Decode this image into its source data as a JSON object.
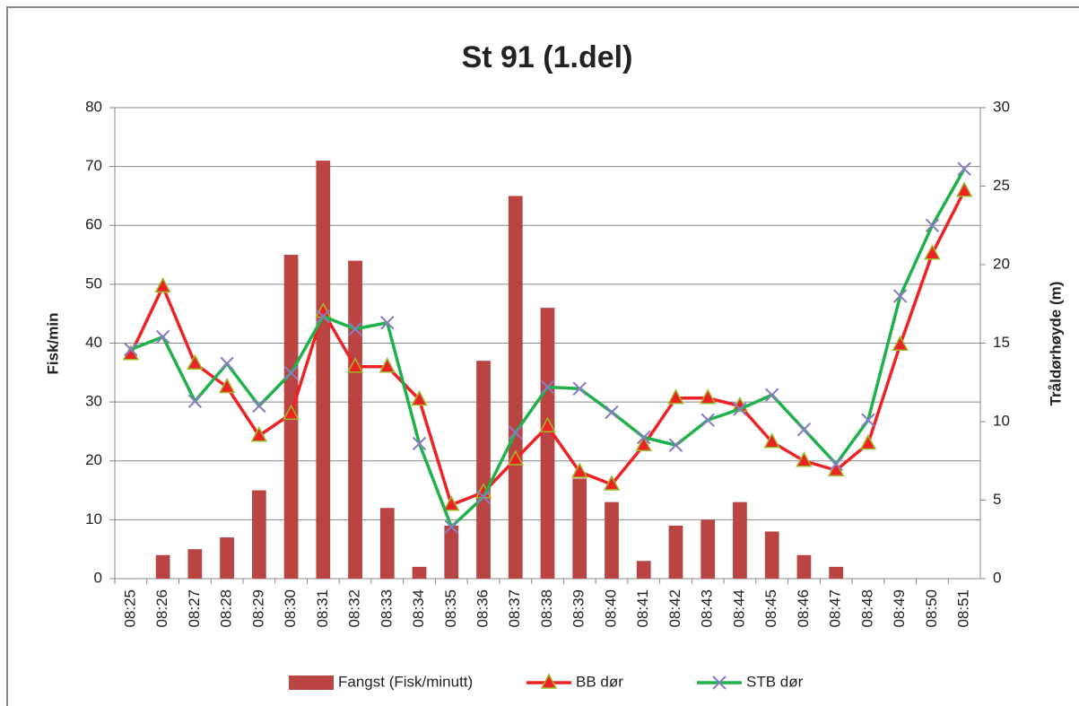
{
  "chart_data": {
    "type": "bar",
    "title": "St 91 (1.del)",
    "y_label": "Fisk/min",
    "y2_label": "Tråldørhøyde (m)",
    "categories": [
      "08:25",
      "08:26",
      "08:27",
      "08:28",
      "08:29",
      "08:30",
      "08:31",
      "08:32",
      "08:33",
      "08:34",
      "08:35",
      "08:36",
      "08:37",
      "08:38",
      "08:39",
      "08:40",
      "08:41",
      "08:42",
      "08:43",
      "08:44",
      "08:45",
      "08:46",
      "08:47",
      "08:48",
      "08:49",
      "08:50",
      "08:51"
    ],
    "series": [
      {
        "name": "Fangst (Fisk/minutt)",
        "type": "bar",
        "color": "#b94442",
        "axis": "y",
        "values": [
          0,
          4,
          5,
          7,
          15,
          55,
          71,
          54,
          12,
          2,
          9,
          37,
          65,
          46,
          17,
          13,
          3,
          9,
          10,
          13,
          8,
          4,
          2,
          0,
          0,
          0,
          0
        ]
      },
      {
        "name": "BB dør",
        "type": "line",
        "color": "#ee2224",
        "marker": "triangle",
        "axis": "y2",
        "values": [
          14.3,
          18.6,
          13.7,
          12.2,
          9.1,
          10.5,
          17.0,
          13.5,
          13.5,
          11.4,
          4.7,
          5.5,
          7.6,
          9.7,
          6.8,
          6.0,
          8.5,
          11.5,
          11.5,
          11.0,
          8.7,
          7.5,
          6.9,
          8.6,
          14.9,
          20.7,
          24.7
        ]
      },
      {
        "name": "STB dør",
        "type": "line",
        "color": "#1fb14a",
        "marker": "x",
        "axis": "y2",
        "values": [
          14.6,
          15.4,
          11.3,
          13.7,
          11.0,
          13.1,
          16.7,
          15.9,
          16.3,
          8.6,
          3.3,
          5.2,
          9.3,
          12.2,
          12.1,
          10.6,
          9.0,
          8.5,
          10.1,
          10.8,
          11.7,
          9.5,
          7.3,
          10.1,
          18.0,
          22.5,
          26.1
        ]
      }
    ],
    "ylim": [
      0,
      80
    ],
    "yticks": [
      0,
      10,
      20,
      30,
      40,
      50,
      60,
      70,
      80
    ],
    "y2lim": [
      0,
      30
    ],
    "y2ticks": [
      0,
      5,
      10,
      15,
      20,
      25,
      30
    ],
    "grid": true,
    "legend": "bottom"
  }
}
